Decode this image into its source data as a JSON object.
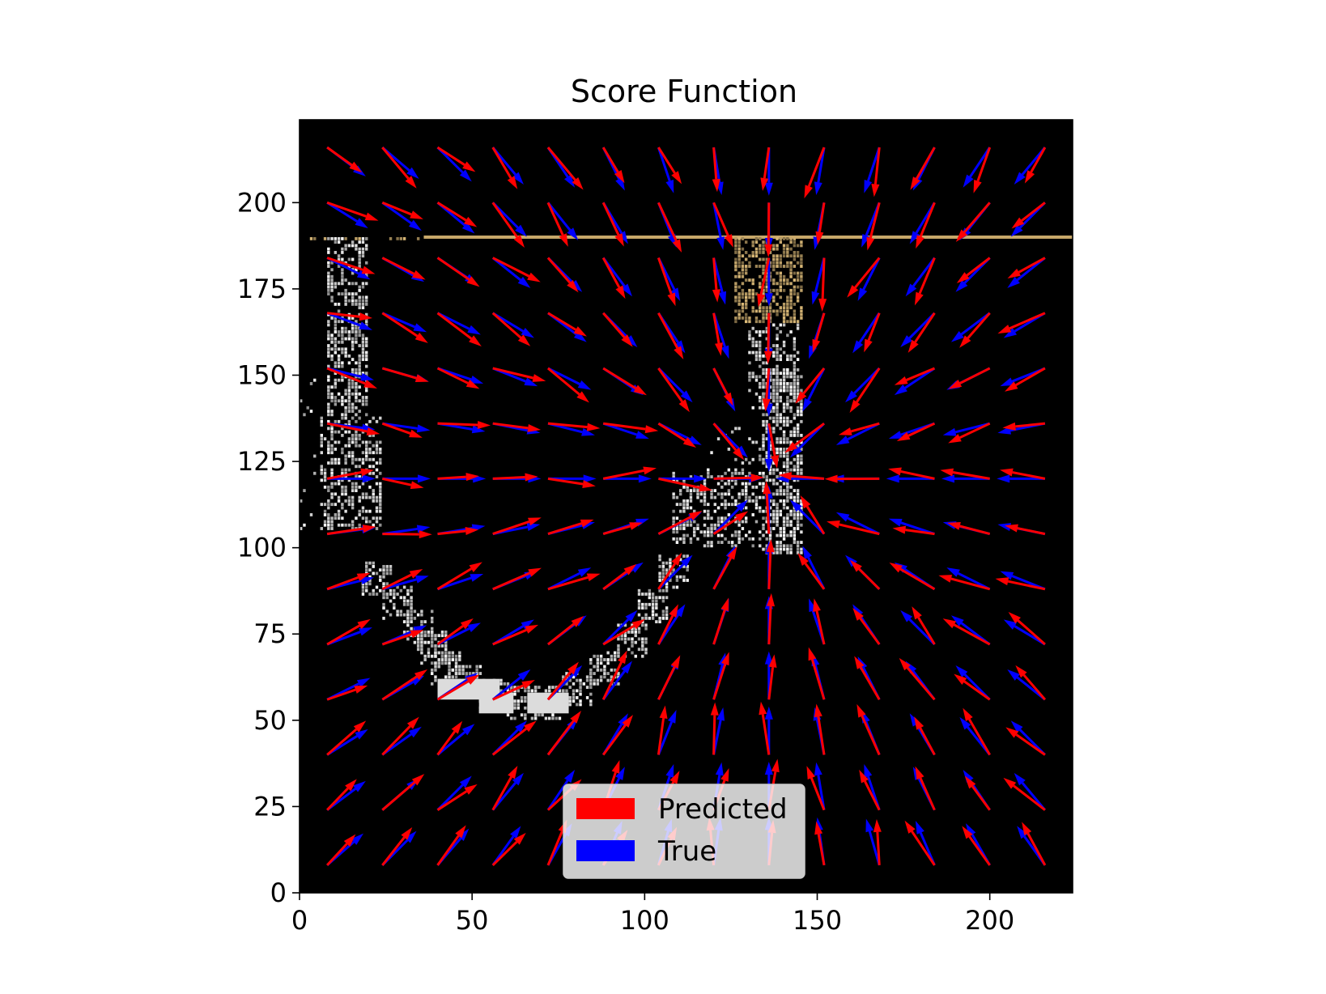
{
  "chart_data": {
    "type": "quiver",
    "title": "Score Function",
    "xlabel": "",
    "ylabel": "",
    "xlim": [
      0,
      224
    ],
    "ylim": [
      0,
      224
    ],
    "x_ticks": [
      0,
      50,
      100,
      150,
      200
    ],
    "y_ticks": [
      0,
      25,
      50,
      75,
      100,
      125,
      150,
      175,
      200
    ],
    "x_tick_labels": [
      "0",
      "50",
      "100",
      "150",
      "200"
    ],
    "y_tick_labels": [
      "0",
      "25",
      "50",
      "75",
      "100",
      "125",
      "150",
      "175",
      "200"
    ],
    "grid": false,
    "background": "#000000",
    "grid_x": [
      8,
      24,
      40,
      56,
      72,
      88,
      104,
      120,
      136,
      152,
      168,
      184,
      200,
      216
    ],
    "grid_y": [
      8,
      24,
      40,
      56,
      72,
      88,
      104,
      120,
      136,
      152,
      168,
      184,
      200,
      216
    ],
    "target_point": [
      136,
      120
    ],
    "series": [
      {
        "name": "Predicted",
        "color": "#ff0000"
      },
      {
        "name": "True",
        "color": "#0000ff"
      }
    ],
    "legend": {
      "position": "lower center",
      "entries": [
        "Predicted",
        "True"
      ]
    },
    "overlay": {
      "gold_line_y": 190,
      "gold_color": "#c8a86a",
      "blocks": [
        {
          "kind": "gripper-column",
          "x_range": [
            8,
            22
          ],
          "y_range": [
            105,
            190
          ]
        },
        {
          "kind": "gripper-column",
          "x_range": [
            126,
            146
          ],
          "y_range": [
            165,
            190
          ]
        },
        {
          "kind": "arm-segment",
          "x_range": [
            108,
            146
          ],
          "y_range": [
            98,
            152
          ]
        },
        {
          "kind": "arm-curve",
          "from": [
            22,
            95
          ],
          "to": [
            108,
            105
          ],
          "bottom_y": 50
        }
      ]
    }
  }
}
